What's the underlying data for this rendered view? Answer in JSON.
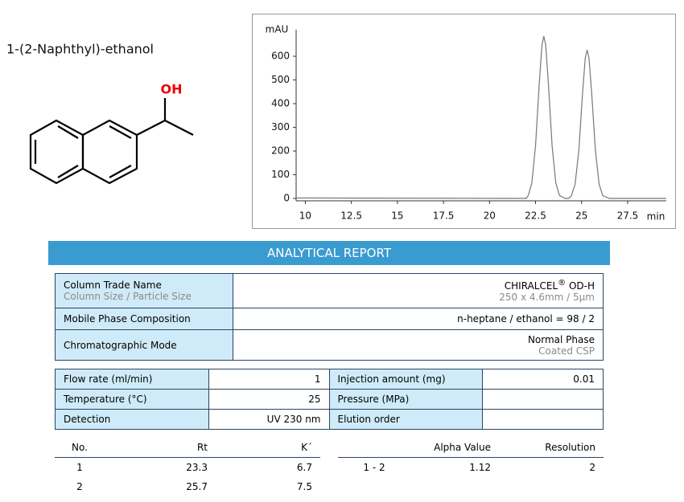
{
  "title": "1-(2-Naphthyl)-ethanol",
  "molecule": {
    "label": "OH"
  },
  "chart_data": {
    "type": "line",
    "y_label": "mAU",
    "x_label": "min",
    "color": "#777777",
    "x": [
      9.5,
      22.0,
      22.1,
      22.3,
      22.5,
      22.7,
      22.85,
      22.95,
      23.05,
      23.2,
      23.4,
      23.6,
      23.8,
      24.1,
      24.3,
      24.45,
      24.65,
      24.85,
      25.05,
      25.2,
      25.3,
      25.4,
      25.55,
      25.75,
      25.95,
      26.15,
      26.5,
      29.6
    ],
    "values": [
      2,
      0,
      12,
      65,
      222,
      484,
      648,
      685,
      648,
      484,
      222,
      65,
      12,
      0,
      0,
      12,
      60,
      204,
      443,
      593,
      627,
      593,
      443,
      204,
      60,
      12,
      0,
      0
    ],
    "xlim": [
      9.5,
      29.6
    ],
    "ylim": [
      -10,
      712
    ],
    "xticks": [
      10,
      12.5,
      15,
      17.5,
      20,
      22.5,
      25,
      27.5
    ],
    "yticks": [
      0,
      100,
      200,
      300,
      400,
      500,
      600
    ]
  },
  "report": {
    "title": "ANALYTICAL REPORT",
    "column": {
      "label": "Column Trade Name",
      "sublabel": "Column Size / Particle Size",
      "value": "CHIRALCEL",
      "mark": "®",
      "value_suffix": "OD-H",
      "subvalue": "250 x 4.6mm / 5µm"
    },
    "mobile_phase": {
      "label": "Mobile Phase Composition",
      "value": "n-heptane / ethanol = 98 / 2"
    },
    "mode": {
      "label": "Chromatographic Mode",
      "value": "Normal Phase",
      "subvalue": "Coated CSP"
    },
    "conditions": [
      {
        "label": "Flow rate (ml/min)",
        "value": 1
      },
      {
        "label": "Injection amount (mg)",
        "value": 0.01
      },
      {
        "label": "Temperature (°C)",
        "value": 25
      },
      {
        "label": "Pressure (MPa)"
      },
      {
        "label": "Detection",
        "value": "UV 230 nm"
      },
      {
        "label": "Elution order"
      }
    ],
    "results": {
      "headers": [
        "No.",
        "Rt",
        "K´"
      ],
      "rows": [
        [
          1,
          23.3,
          6.7
        ],
        [
          2,
          25.7,
          7.5
        ]
      ]
    },
    "separation": {
      "headers": [
        "Alpha Value",
        "Resolution"
      ],
      "rows": [
        {
          "pair": "1 - 2",
          "alpha": 1.12,
          "resolution": 2
        }
      ]
    }
  }
}
